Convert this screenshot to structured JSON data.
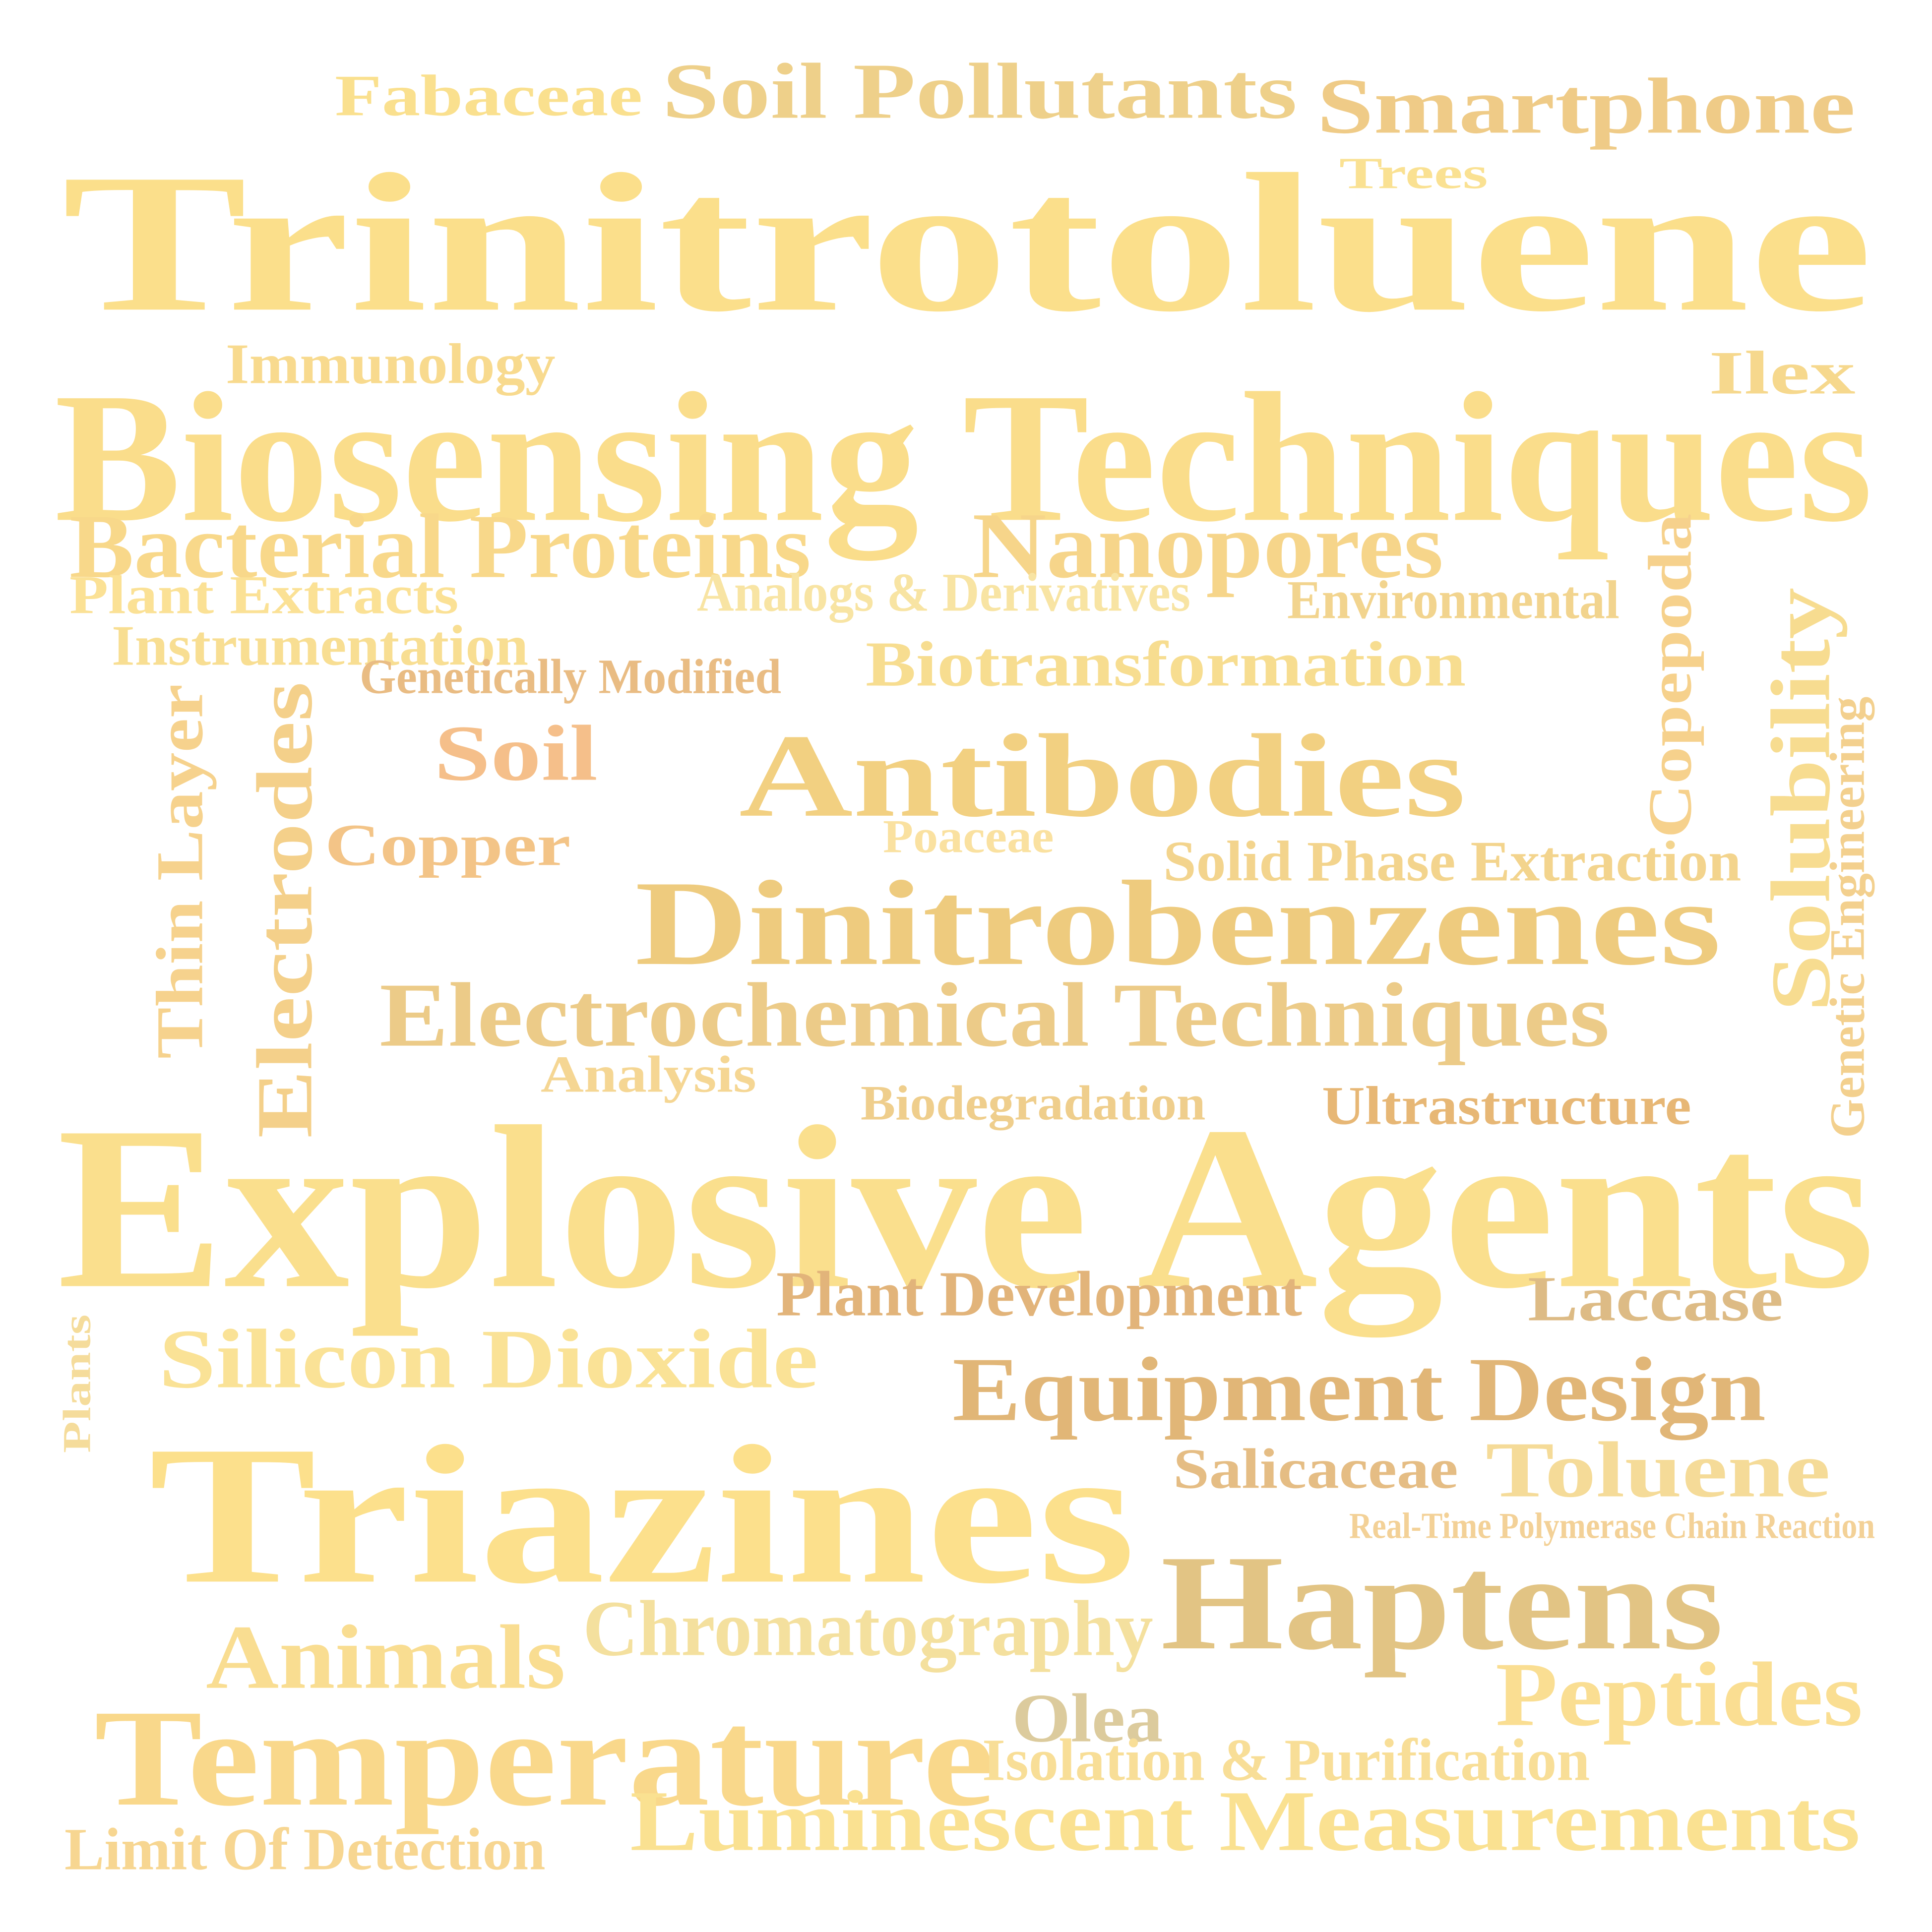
{
  "words": [
    {
      "text": "Fabaceae",
      "color": "#FAE08E"
    },
    {
      "text": "Soil Pollutants",
      "color": "#EED08A"
    },
    {
      "text": "Smartphone",
      "color": "#EFCB87"
    },
    {
      "text": "Trees",
      "color": "#FAE192"
    },
    {
      "text": "Trinitrotoluene",
      "color": "#FBDF8B"
    },
    {
      "text": "Immunology",
      "color": "#F8DA8E"
    },
    {
      "text": "Ilex",
      "color": "#F6D88D"
    },
    {
      "text": "Biosensing Techniques",
      "color": "#FADD8B"
    },
    {
      "text": "Bacterial Proteins",
      "color": "#F8D88A"
    },
    {
      "text": "Nanopores",
      "color": "#F6D58A"
    },
    {
      "text": "Plant Extracts",
      "color": "#FBE195"
    },
    {
      "text": "Analogs & Derivatives",
      "color": "#F8E4A3"
    },
    {
      "text": "Environmental",
      "color": "#F2D48E"
    },
    {
      "text": "Copepoda",
      "color": "#F6D18C"
    },
    {
      "text": "Instrumentation",
      "color": "#F8DE92"
    },
    {
      "text": "Genetically Modified",
      "color": "#E9BC83"
    },
    {
      "text": "Biotransformation",
      "color": "#F7DD90"
    },
    {
      "text": "Solubility",
      "color": "#F7DC90"
    },
    {
      "text": "Genetic Engineering",
      "color": "#F3D08E"
    },
    {
      "text": "Thin Layer",
      "color": "#F6D28D"
    },
    {
      "text": "Electrodes",
      "color": "#F4D08A"
    },
    {
      "text": "Soil",
      "color": "#F5BF8A"
    },
    {
      "text": "Antibodies",
      "color": "#F2D081"
    },
    {
      "text": "Copper",
      "color": "#F3C487"
    },
    {
      "text": "Poaceae",
      "color": "#FAE1A0"
    },
    {
      "text": "Solid Phase Extraction",
      "color": "#F3D48D"
    },
    {
      "text": "Dinitrobenzenes",
      "color": "#EECB7E"
    },
    {
      "text": "Electrochemical Techniques",
      "color": "#ECCB88"
    },
    {
      "text": "Analysis",
      "color": "#F5D693"
    },
    {
      "text": "Biodegradation",
      "color": "#EFCE8C"
    },
    {
      "text": "Ultrastructure",
      "color": "#E7B775"
    },
    {
      "text": "Explosive Agents",
      "color": "#FADF8D"
    },
    {
      "text": "Plant Development",
      "color": "#E2B47A"
    },
    {
      "text": "Laccase",
      "color": "#DDBB85"
    },
    {
      "text": "Plants",
      "color": "#F5DC9B"
    },
    {
      "text": "Silicon Dioxide",
      "color": "#FAE296"
    },
    {
      "text": "Equipment Design",
      "color": "#E1B677"
    },
    {
      "text": "Salicaceae",
      "color": "#E5BD84"
    },
    {
      "text": "Toluene",
      "color": "#F5DB98"
    },
    {
      "text": "Triazines",
      "color": "#FCE08C"
    },
    {
      "text": "Real-Time Polymerase Chain Reaction",
      "color": "#F3D197"
    },
    {
      "text": "Haptens",
      "color": "#E2C484"
    },
    {
      "text": "Chromatography",
      "color": "#F4E09E"
    },
    {
      "text": "Animals",
      "color": "#F9DD91"
    },
    {
      "text": "Peptides",
      "color": "#FADE92"
    },
    {
      "text": "Olea",
      "color": "#DCCB9D"
    },
    {
      "text": "Temperature",
      "color": "#F9D88B"
    },
    {
      "text": "Isolation & Purification",
      "color": "#F8DE97"
    },
    {
      "text": "Luminescent Measurements",
      "color": "#FAE191"
    },
    {
      "text": "Limit Of Detection",
      "color": "#F7D691"
    }
  ]
}
